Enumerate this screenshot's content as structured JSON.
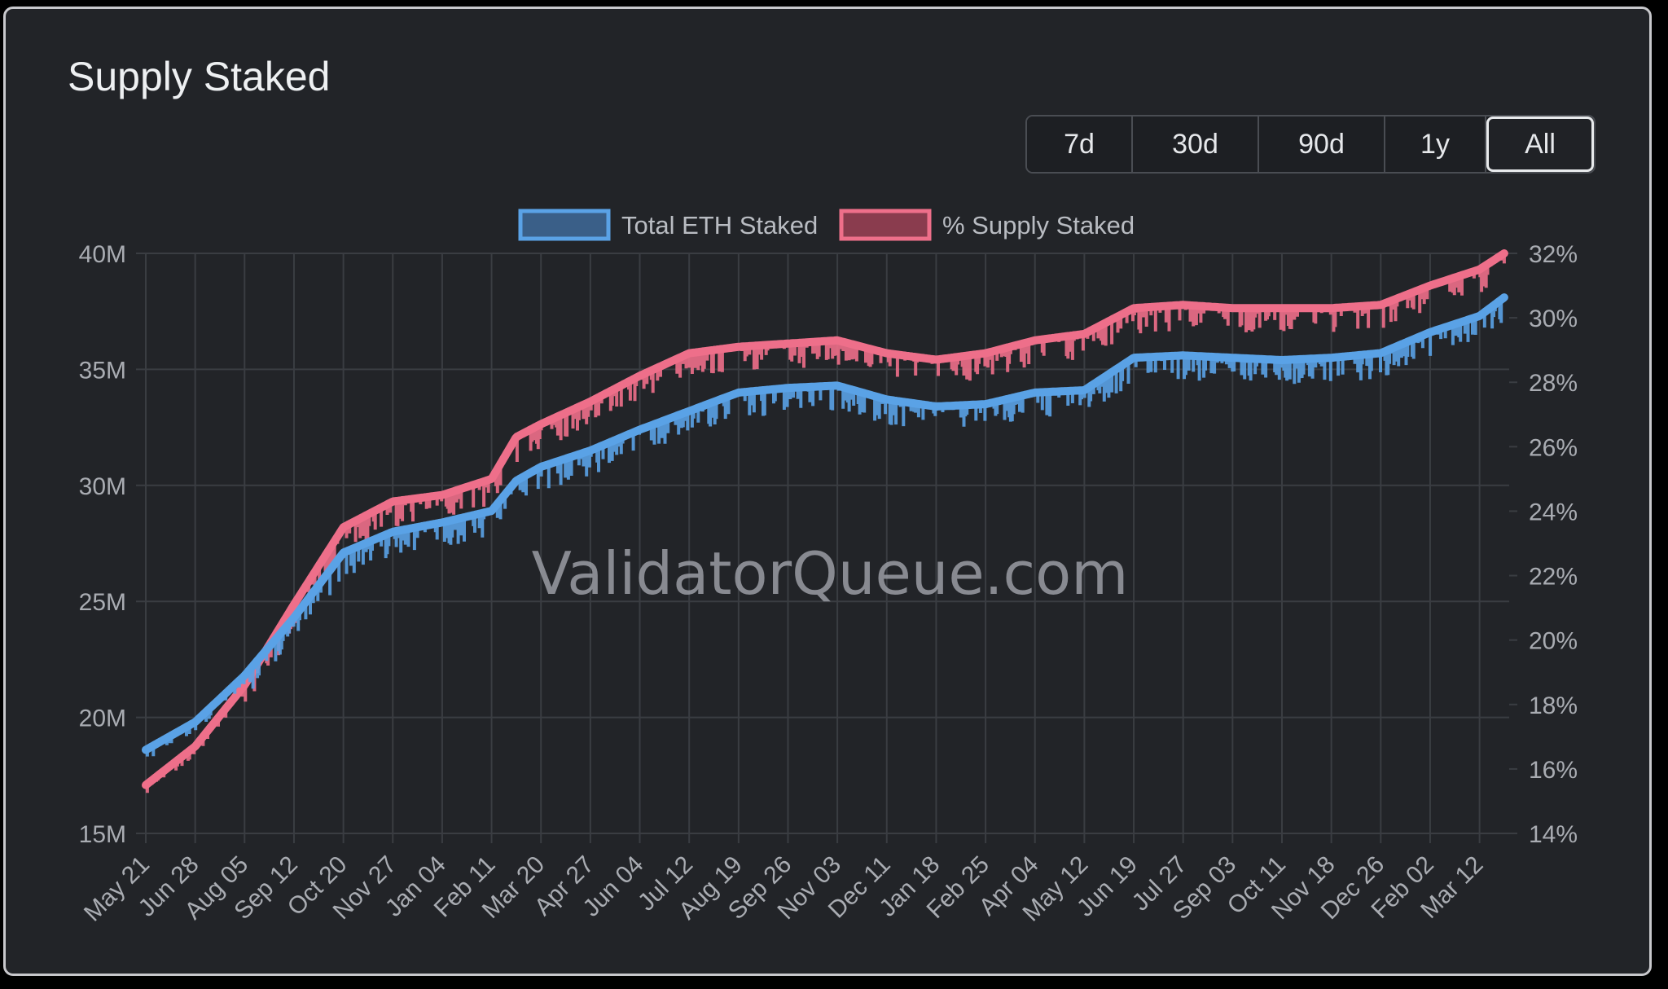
{
  "page": {
    "title": "Supply Staked",
    "watermark": "ValidatorQueue.com",
    "colors": {
      "background": "#222428",
      "grid": "#3a3d42",
      "text": "#a9acb2",
      "eth_line": "#5aa2e6",
      "pct_line": "#ee6f8a"
    }
  },
  "range_selector": {
    "buttons": [
      {
        "label": "7d",
        "active": false
      },
      {
        "label": "30d",
        "active": false
      },
      {
        "label": "90d",
        "active": false
      },
      {
        "label": "1y",
        "active": false
      },
      {
        "label": "All",
        "active": true
      }
    ]
  },
  "chart_data": {
    "type": "line",
    "title": "Supply Staked",
    "legend_placement": "top-center",
    "grid": true,
    "x_tick_labels": [
      "May 21",
      "Jun 28",
      "Aug 05",
      "Sep 12",
      "Oct 20",
      "Nov 27",
      "Jan 04",
      "Feb 11",
      "Mar 20",
      "Apr 27",
      "Jun 04",
      "Jul 12",
      "Aug 19",
      "Sep 26",
      "Nov 03",
      "Dec 11",
      "Jan 18",
      "Feb 25",
      "Apr 04",
      "May 12",
      "Jun 19",
      "Jul 27",
      "Sep 03",
      "Oct 11",
      "Nov 18",
      "Dec 26",
      "Feb 02",
      "Mar 12"
    ],
    "y_left": {
      "range": [
        15000000,
        40000000
      ],
      "tick_labels": [
        "40M",
        "35M",
        "30M",
        "25M",
        "20M",
        "15M"
      ],
      "tick_values": [
        40000000,
        35000000,
        30000000,
        25000000,
        20000000,
        15000000
      ]
    },
    "y_right": {
      "range": [
        14,
        32
      ],
      "tick_labels": [
        "32%",
        "30%",
        "28%",
        "26%",
        "24%",
        "22%",
        "20%",
        "18%",
        "16%",
        "14%"
      ],
      "tick_values": [
        32,
        30,
        28,
        26,
        24,
        22,
        20,
        18,
        16,
        14
      ]
    },
    "x_index_range": [
      0,
      27.6
    ],
    "series": [
      {
        "name": "Total ETH Staked",
        "axis": "left",
        "color": "#5aa2e6",
        "x": [
          0,
          1,
          2,
          3,
          4,
          5,
          6,
          7,
          7.5,
          8,
          9,
          10,
          11,
          12,
          13,
          14,
          15,
          16,
          17,
          18,
          19,
          20,
          21,
          22,
          23,
          24,
          25,
          26,
          27,
          27.5
        ],
        "values": [
          18600000,
          19800000,
          21800000,
          24300000,
          27100000,
          28000000,
          28400000,
          28900000,
          30200000,
          30800000,
          31500000,
          32400000,
          33200000,
          34000000,
          34200000,
          34300000,
          33700000,
          33400000,
          33500000,
          34000000,
          34100000,
          35500000,
          35600000,
          35500000,
          35400000,
          35500000,
          35700000,
          36600000,
          37300000,
          38100000
        ]
      },
      {
        "name": "% Supply Staked",
        "axis": "right",
        "color": "#ee6f8a",
        "x": [
          0,
          1,
          2,
          3,
          4,
          5,
          6,
          7,
          7.5,
          8,
          9,
          10,
          11,
          12,
          13,
          14,
          15,
          16,
          17,
          18,
          19,
          20,
          21,
          22,
          23,
          24,
          25,
          26,
          27,
          27.5
        ],
        "values": [
          15.5,
          16.7,
          18.6,
          21.1,
          23.5,
          24.3,
          24.5,
          25.0,
          26.3,
          26.7,
          27.4,
          28.2,
          28.9,
          29.1,
          29.2,
          29.3,
          28.9,
          28.7,
          28.9,
          29.3,
          29.5,
          30.3,
          30.4,
          30.3,
          30.3,
          30.3,
          30.4,
          31.0,
          31.5,
          32.0
        ]
      }
    ]
  }
}
